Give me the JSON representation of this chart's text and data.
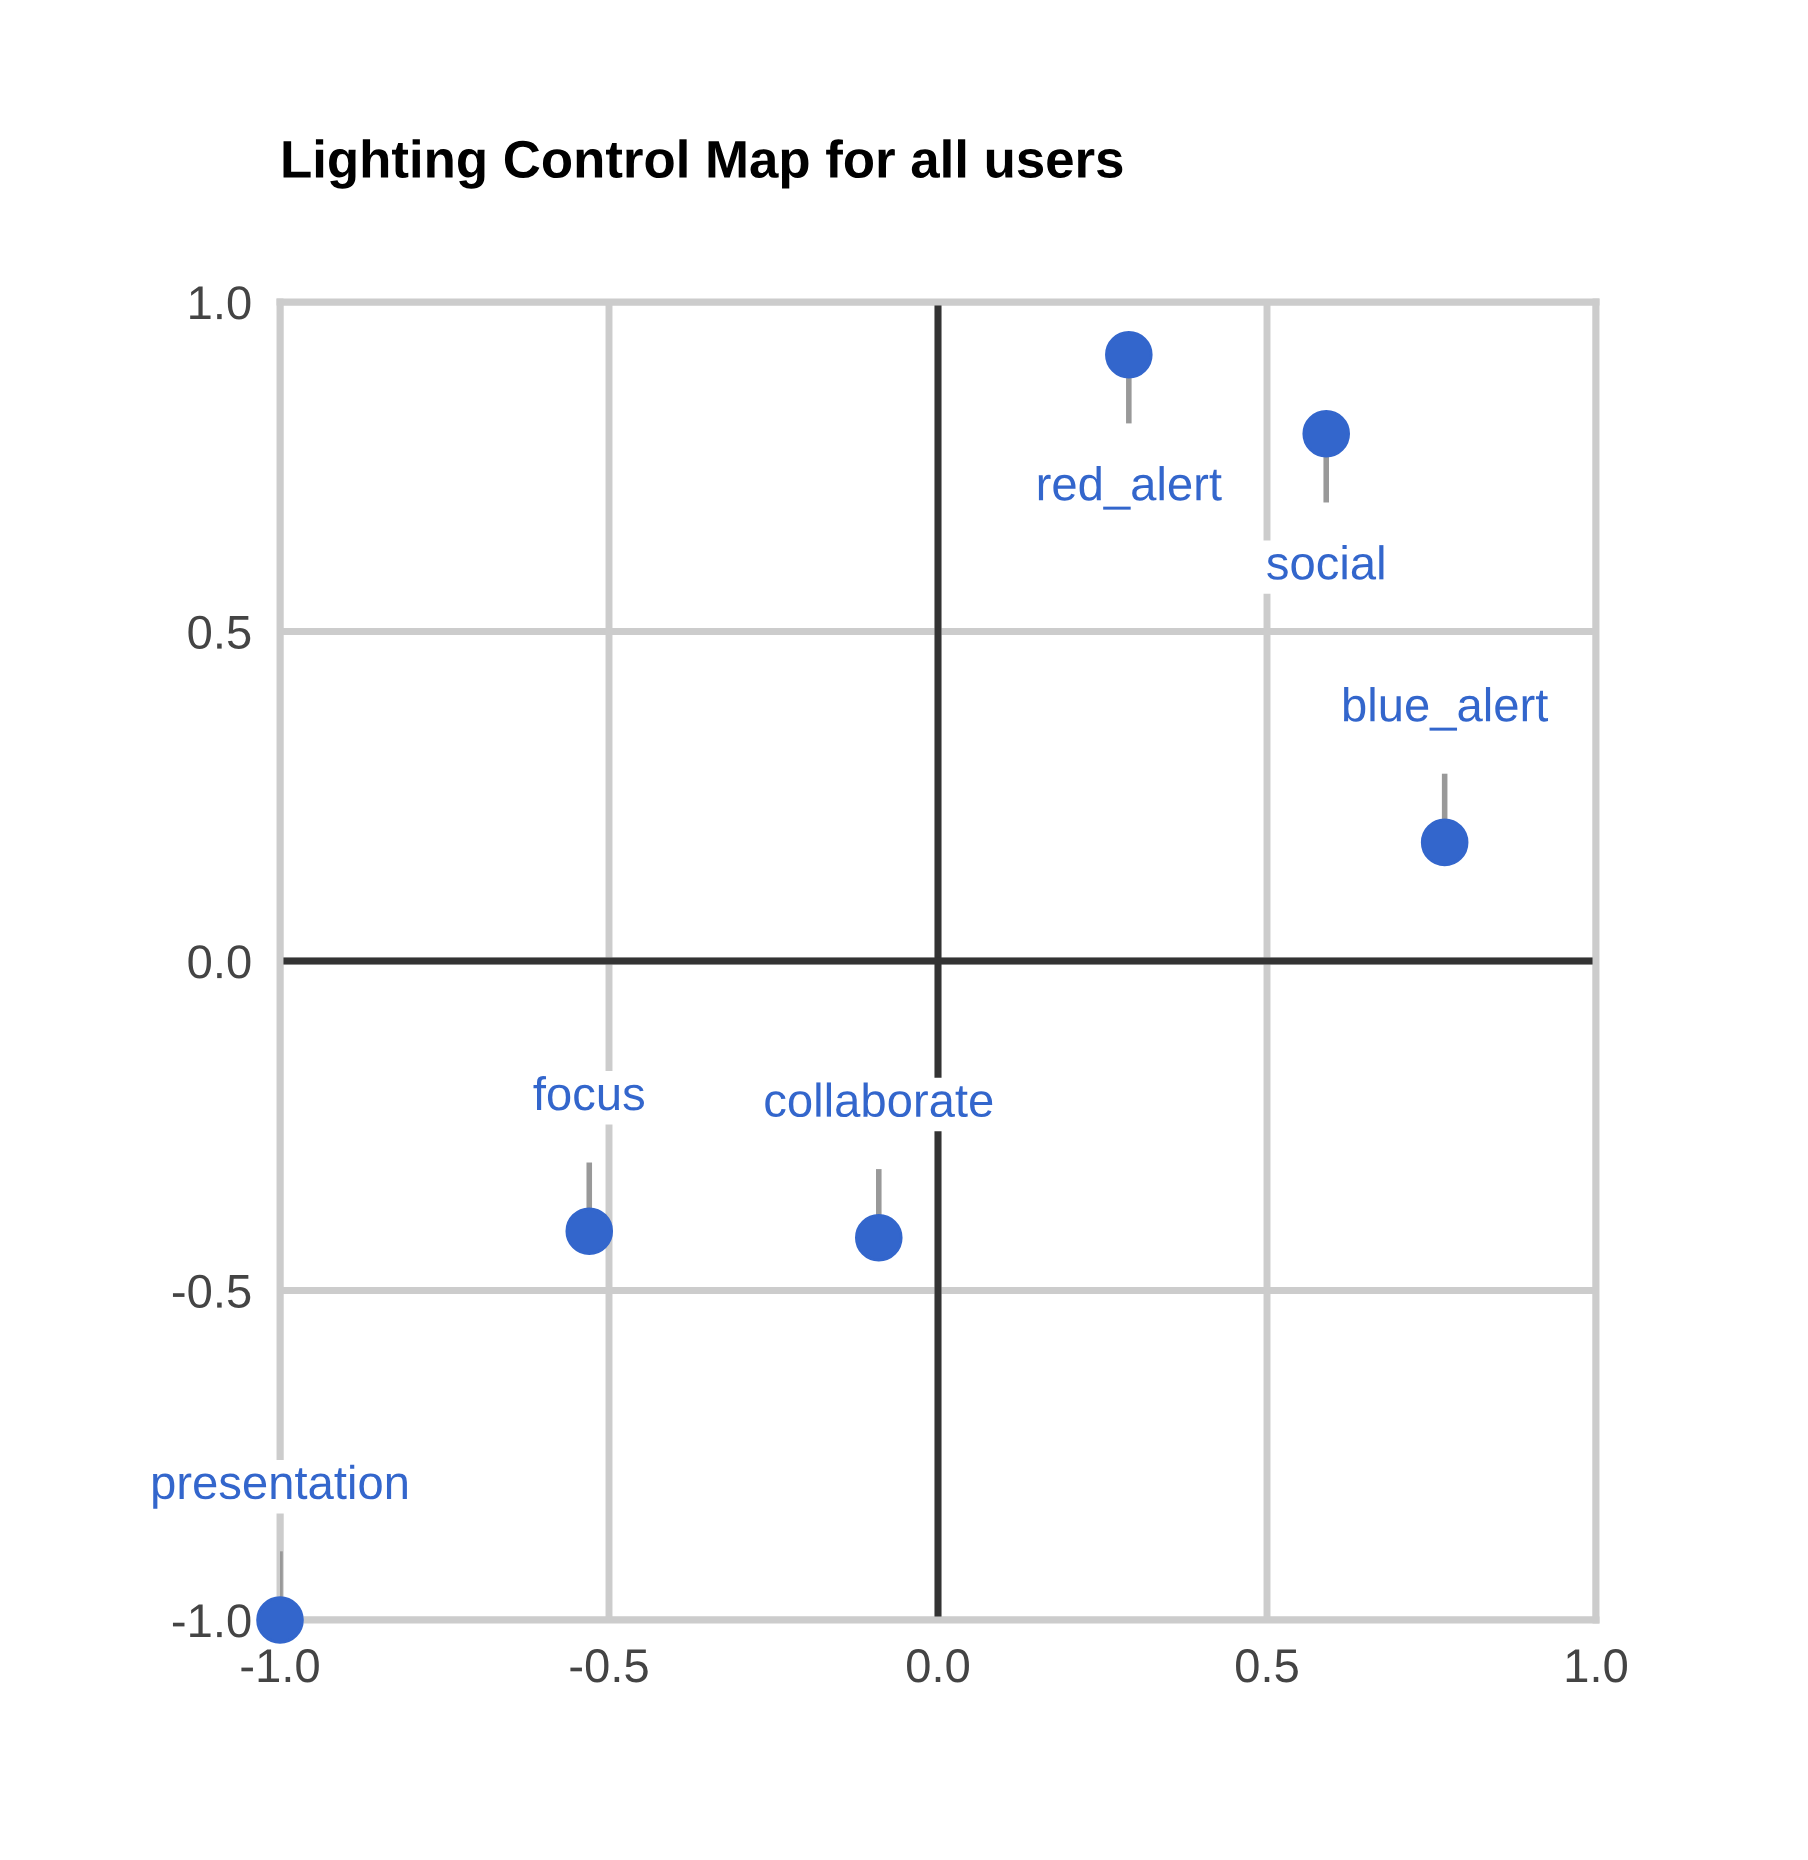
{
  "chart_data": {
    "type": "scatter",
    "title": "Lighting Control Map for all users",
    "series": [
      {
        "color": "#3366cc",
        "x": [
          0.29,
          0.59,
          0.77,
          -0.53,
          -0.09,
          -1.0
        ],
        "values": [
          0.92,
          0.8,
          0.18,
          -0.41,
          -0.42,
          -1.0
        ]
      }
    ],
    "annotations": [
      {
        "text": "red_alert",
        "x": 0.29,
        "y": 0.92
      },
      {
        "text": "social",
        "x": 0.59,
        "y": 0.8
      },
      {
        "text": "blue_alert",
        "x": 0.77,
        "y": 0.18
      },
      {
        "text": "focus",
        "x": -0.53,
        "y": -0.41
      },
      {
        "text": "collaborate",
        "x": -0.09,
        "y": -0.42
      },
      {
        "text": "presentation",
        "x": -1.0,
        "y": -1.0
      }
    ],
    "xlim": [
      -1.0,
      1.0
    ],
    "ylim": [
      -1.0,
      1.0
    ],
    "xticks": [
      {
        "value": -1.0,
        "label": "-1.0"
      },
      {
        "value": -0.5,
        "label": "-0.5"
      },
      {
        "value": 0.0,
        "label": "0.0"
      },
      {
        "value": 0.5,
        "label": "0.5"
      },
      {
        "value": 1.0,
        "label": "1.0"
      }
    ],
    "yticks": [
      {
        "value": -1.0,
        "label": "-1.0"
      },
      {
        "value": -0.5,
        "label": "-0.5"
      },
      {
        "value": 0.0,
        "label": "0.0"
      },
      {
        "value": 0.5,
        "label": "0.5"
      },
      {
        "value": 1.0,
        "label": "1.0"
      }
    ],
    "grid": true,
    "marker": "circle",
    "legend": false
  }
}
